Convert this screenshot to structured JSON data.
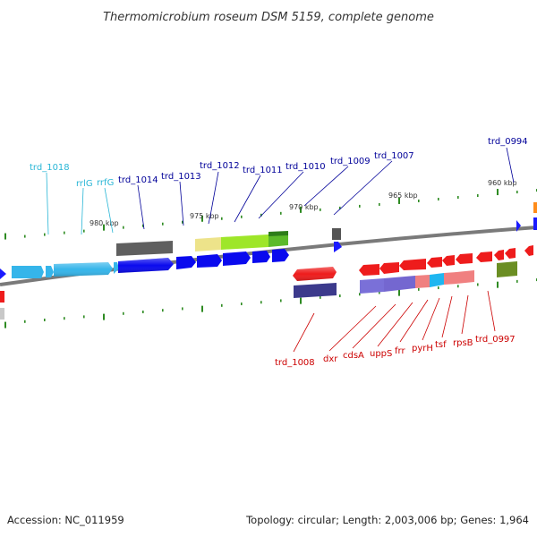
{
  "title": "Thermomicrobium roseum DSM 5159, complete genome",
  "footer": {
    "accession": "Accession: NC_011959",
    "summary": "Topology: circular; Length: 2,003,006 bp; Genes: 1,964"
  },
  "colors": {
    "upper_label": "#000099",
    "rna_label": "#29b6d6",
    "lower_label": "#cc0000",
    "backbone": "#7a7a7a",
    "tick": "#2e8b22"
  },
  "scale_labels": [
    "980 kbp",
    "975 kbp",
    "970 kbp",
    "965 kbp",
    "960 kbp"
  ],
  "genes_above": [
    {
      "label": "trd_1018",
      "kind": "rna"
    },
    {
      "label": "rrlG",
      "kind": "rna"
    },
    {
      "label": "rrfG",
      "kind": "rna"
    },
    {
      "label": "trd_1014",
      "kind": "protein"
    },
    {
      "label": "trd_1013",
      "kind": "protein"
    },
    {
      "label": "trd_1012",
      "kind": "protein"
    },
    {
      "label": "trd_1011",
      "kind": "protein"
    },
    {
      "label": "trd_1010",
      "kind": "protein"
    },
    {
      "label": "trd_1009",
      "kind": "protein"
    },
    {
      "label": "trd_1007",
      "kind": "protein"
    },
    {
      "label": "trd_0994",
      "kind": "protein"
    }
  ],
  "genes_below": [
    {
      "label": "trd_1008"
    },
    {
      "label": "dxr"
    },
    {
      "label": "cdsA"
    },
    {
      "label": "uppS"
    },
    {
      "label": "frr"
    },
    {
      "label": "pyrH"
    },
    {
      "label": "tsf"
    },
    {
      "label": "rpsB"
    },
    {
      "label": "trd_0997"
    }
  ]
}
